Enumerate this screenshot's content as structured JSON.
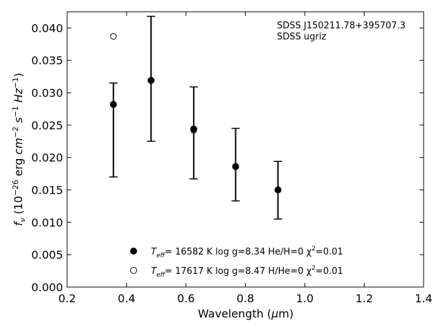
{
  "chart_data": {
    "type": "scatter",
    "annotation": [
      "SDSS J150211.78+395707.3",
      "SDSS ugriz"
    ],
    "xlabel": "Wavelength (μm)",
    "ylabel": "f_ν (10^-26 erg cm^-2 s^-1 Hz^-1)",
    "xlim": [
      0.2,
      1.4
    ],
    "ylim": [
      0.0,
      0.0425
    ],
    "xticks": [
      "0.2",
      "0.4",
      "0.6",
      "0.8",
      "1.0",
      "1.2",
      "1.4"
    ],
    "yticks": [
      "0.000",
      "0.005",
      "0.010",
      "0.015",
      "0.020",
      "0.025",
      "0.030",
      "0.035",
      "0.040"
    ],
    "grid": false,
    "legend_position": "lower-center",
    "observed": {
      "x": [
        0.3557,
        0.4825,
        0.6261,
        0.7672,
        0.9097
      ],
      "y": [
        0.0282,
        0.0319,
        0.0244,
        0.0186,
        0.015
      ],
      "yerr_low": [
        0.017,
        0.0225,
        0.0167,
        0.0133,
        0.0105
      ],
      "yerr_high": [
        0.0315,
        0.0418,
        0.0309,
        0.0245,
        0.0194
      ]
    },
    "series": [
      {
        "marker": "filled-circle",
        "label_parts": [
          "T",
          "eff",
          "= 16582 K  log g=8.34  He/H=0  χ",
          "2",
          "=0.01"
        ],
        "x": [
          0.3557,
          0.4825,
          0.6261,
          0.7672,
          0.9097
        ],
        "y": [
          0.0282,
          0.0319,
          0.0244,
          0.0186,
          0.015
        ]
      },
      {
        "marker": "open-circle",
        "label_parts": [
          "T",
          "eff",
          "= 17617 K  log g=8.47  H/He=0  χ",
          "2",
          "=0.01"
        ],
        "x": [
          0.3557,
          0.4825,
          0.6261,
          0.7672,
          0.9097
        ],
        "y": [
          0.0387,
          0.0319,
          0.0242,
          0.0186,
          0.015
        ]
      }
    ]
  }
}
